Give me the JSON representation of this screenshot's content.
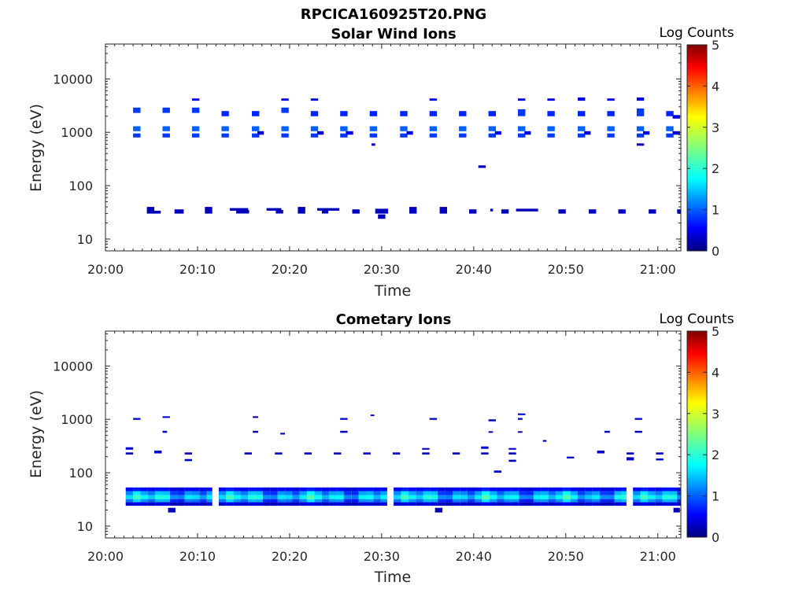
{
  "figure": {
    "file_title": "RPCICA160925T20.PNG"
  },
  "colorbar": {
    "label": "Log Counts",
    "range": [
      0,
      5
    ],
    "ticks": [
      "0",
      "1",
      "2",
      "3",
      "4",
      "5"
    ],
    "colormap": "jet"
  },
  "chart_data": [
    {
      "type": "heatmap",
      "title": "Solar Wind Ions",
      "xlabel": "Time",
      "ylabel": "Energy (eV)",
      "yscale": "log",
      "x_ticks": [
        "20:00",
        "20:10",
        "20:20",
        "20:30",
        "20:40",
        "20:50",
        "21:00"
      ],
      "y_ticks": [
        "10",
        "100",
        "1000",
        "10000"
      ],
      "xlim_minutes_after_20_00": [
        0,
        62.5
      ],
      "ylim_eV": [
        6,
        45000
      ],
      "cells": [
        [
          3.0,
          0.8,
          2300,
          2900,
          0.9
        ],
        [
          3.0,
          0.8,
          1050,
          1300,
          1.1
        ],
        [
          3.0,
          0.8,
          800,
          950,
          0.9
        ],
        [
          6.2,
          0.8,
          2300,
          2900,
          0.9
        ],
        [
          6.2,
          0.8,
          1050,
          1300,
          1.1
        ],
        [
          6.2,
          0.8,
          800,
          950,
          0.9
        ],
        [
          9.4,
          0.8,
          2300,
          2900,
          0.9
        ],
        [
          9.4,
          0.8,
          1050,
          1300,
          1.1
        ],
        [
          9.4,
          0.8,
          800,
          950,
          0.9
        ],
        [
          9.4,
          0.8,
          3900,
          4300,
          0.5
        ],
        [
          12.6,
          0.8,
          2000,
          2500,
          0.8
        ],
        [
          12.6,
          0.8,
          1050,
          1300,
          1.1
        ],
        [
          12.6,
          0.8,
          800,
          950,
          0.9
        ],
        [
          15.9,
          0.8,
          2000,
          2500,
          0.8
        ],
        [
          15.9,
          0.8,
          1050,
          1300,
          1.1
        ],
        [
          15.9,
          0.8,
          800,
          950,
          0.9
        ],
        [
          16.5,
          0.7,
          900,
          1050,
          0.4
        ],
        [
          19.1,
          0.8,
          2300,
          2900,
          0.9
        ],
        [
          19.1,
          0.8,
          1050,
          1300,
          1.1
        ],
        [
          19.1,
          0.8,
          800,
          950,
          0.9
        ],
        [
          19.1,
          0.8,
          3900,
          4300,
          0.5
        ],
        [
          22.3,
          0.8,
          2000,
          2500,
          0.8
        ],
        [
          22.3,
          0.8,
          1050,
          1300,
          1.1
        ],
        [
          22.3,
          0.8,
          800,
          950,
          0.9
        ],
        [
          22.3,
          0.8,
          3900,
          4300,
          0.5
        ],
        [
          23.0,
          0.7,
          900,
          1050,
          0.4
        ],
        [
          25.5,
          0.8,
          2000,
          2500,
          0.8
        ],
        [
          25.5,
          0.8,
          1050,
          1300,
          1.1
        ],
        [
          25.5,
          0.8,
          800,
          950,
          0.9
        ],
        [
          26.1,
          0.8,
          900,
          1050,
          0.5
        ],
        [
          28.7,
          0.8,
          2000,
          2500,
          0.8
        ],
        [
          28.7,
          0.8,
          1050,
          1300,
          1.1
        ],
        [
          28.7,
          0.8,
          800,
          950,
          0.9
        ],
        [
          28.9,
          0.4,
          560,
          620,
          0.3
        ],
        [
          32.0,
          0.8,
          2000,
          2500,
          0.8
        ],
        [
          32.0,
          0.8,
          1050,
          1300,
          1.1
        ],
        [
          32.0,
          0.8,
          800,
          950,
          0.9
        ],
        [
          32.7,
          0.7,
          900,
          1050,
          0.5
        ],
        [
          35.2,
          0.8,
          2000,
          2500,
          0.8
        ],
        [
          35.2,
          0.8,
          1050,
          1300,
          1.1
        ],
        [
          35.2,
          0.8,
          800,
          950,
          0.9
        ],
        [
          35.2,
          0.8,
          3900,
          4300,
          0.5
        ],
        [
          38.4,
          0.8,
          2000,
          2500,
          0.8
        ],
        [
          38.4,
          0.8,
          1050,
          1300,
          1.1
        ],
        [
          38.4,
          0.8,
          800,
          950,
          0.9
        ],
        [
          41.6,
          0.8,
          2000,
          2500,
          0.8
        ],
        [
          41.6,
          0.8,
          1050,
          1300,
          1.1
        ],
        [
          41.6,
          0.8,
          800,
          950,
          0.9
        ],
        [
          42.3,
          0.7,
          900,
          1050,
          0.5
        ],
        [
          40.5,
          0.8,
          215,
          240,
          0.3
        ],
        [
          44.8,
          0.8,
          2000,
          2700,
          0.9
        ],
        [
          44.8,
          0.8,
          1050,
          1300,
          1.1
        ],
        [
          44.8,
          0.8,
          800,
          950,
          0.9
        ],
        [
          44.8,
          0.8,
          3900,
          4300,
          0.5
        ],
        [
          45.5,
          0.7,
          900,
          1050,
          0.5
        ],
        [
          48.0,
          0.8,
          2000,
          2500,
          0.8
        ],
        [
          48.0,
          0.8,
          1050,
          1300,
          1.1
        ],
        [
          48.0,
          0.8,
          800,
          950,
          0.9
        ],
        [
          48.0,
          0.8,
          3900,
          4300,
          0.5
        ],
        [
          51.3,
          0.8,
          2000,
          2500,
          0.8
        ],
        [
          51.3,
          0.8,
          1050,
          1300,
          1.1
        ],
        [
          51.3,
          0.8,
          800,
          950,
          0.9
        ],
        [
          51.3,
          0.8,
          3900,
          4500,
          0.5
        ],
        [
          52.0,
          0.7,
          900,
          1050,
          0.4
        ],
        [
          54.5,
          0.8,
          2000,
          2500,
          0.8
        ],
        [
          54.5,
          0.8,
          1050,
          1300,
          1.1
        ],
        [
          54.5,
          0.8,
          800,
          950,
          0.9
        ],
        [
          54.5,
          0.8,
          3900,
          4300,
          0.5
        ],
        [
          57.7,
          0.8,
          2000,
          2800,
          0.9
        ],
        [
          57.7,
          0.8,
          1050,
          1300,
          1.1
        ],
        [
          57.7,
          0.8,
          800,
          950,
          0.9
        ],
        [
          57.7,
          0.8,
          3900,
          4500,
          0.5
        ],
        [
          57.7,
          0.8,
          560,
          620,
          0.3
        ],
        [
          58.4,
          0.7,
          900,
          1050,
          0.5
        ],
        [
          60.9,
          0.8,
          2000,
          2500,
          0.8
        ],
        [
          60.9,
          0.8,
          1050,
          1300,
          1.1
        ],
        [
          60.9,
          0.8,
          800,
          950,
          0.9
        ],
        [
          61.6,
          0.8,
          1800,
          2100,
          0.5
        ],
        [
          61.6,
          0.8,
          900,
          1050,
          0.5
        ],
        [
          4.5,
          0.8,
          30,
          40,
          0.3
        ],
        [
          5.2,
          0.8,
          30,
          34,
          0.3
        ],
        [
          7.5,
          1.0,
          30,
          36,
          0.3
        ],
        [
          10.8,
          0.8,
          30,
          40,
          0.3
        ],
        [
          13.5,
          2.0,
          34,
          38,
          0.3
        ],
        [
          14.2,
          1.4,
          30,
          35,
          0.3
        ],
        [
          17.5,
          1.6,
          34,
          38,
          0.3
        ],
        [
          18.5,
          0.8,
          30,
          35,
          0.3
        ],
        [
          20.9,
          0.8,
          30,
          40,
          0.3
        ],
        [
          23.0,
          2.4,
          34,
          38,
          0.3
        ],
        [
          23.5,
          0.7,
          30,
          35,
          0.3
        ],
        [
          26.8,
          0.8,
          30,
          36,
          0.3
        ],
        [
          29.3,
          1.4,
          30,
          37,
          0.3
        ],
        [
          29.6,
          0.8,
          24,
          29,
          0.3
        ],
        [
          33.0,
          0.8,
          30,
          40,
          0.3
        ],
        [
          36.3,
          0.8,
          30,
          40,
          0.3
        ],
        [
          39.5,
          0.8,
          30,
          36,
          0.3
        ],
        [
          41.8,
          0.3,
          33,
          37,
          0.3
        ],
        [
          43.0,
          0.8,
          30,
          36,
          0.3
        ],
        [
          44.6,
          2.4,
          33,
          37,
          0.3
        ],
        [
          49.2,
          0.8,
          30,
          36,
          0.3
        ],
        [
          52.5,
          0.8,
          30,
          36,
          0.3
        ],
        [
          55.7,
          0.8,
          30,
          36,
          0.3
        ],
        [
          59.0,
          0.8,
          30,
          36,
          0.3
        ],
        [
          62.1,
          0.6,
          30,
          36,
          0.3
        ]
      ]
    },
    {
      "type": "heatmap",
      "title": "Cometary Ions",
      "xlabel": "Time",
      "ylabel": "Energy (eV)",
      "yscale": "log",
      "x_ticks": [
        "20:00",
        "20:10",
        "20:20",
        "20:30",
        "20:40",
        "20:50",
        "21:00"
      ],
      "y_ticks": [
        "10",
        "100",
        "1000",
        "10000"
      ],
      "xlim_minutes_after_20_00": [
        0,
        62.5
      ],
      "ylim_eV": [
        6,
        45000
      ],
      "band_segments_minutes": [
        [
          2.2,
          11.6
        ],
        [
          12.3,
          30.6
        ],
        [
          31.3,
          56.6
        ],
        [
          57.3,
          62.5
        ]
      ],
      "band_rows": [
        {
          "lo": 45,
          "hi": 53,
          "level": 0.6
        },
        {
          "lo": 38,
          "hi": 45,
          "level": 1.3
        },
        {
          "lo": 32,
          "hi": 38,
          "level": 1.7
        },
        {
          "lo": 28,
          "hi": 32,
          "level": 1.2
        },
        {
          "lo": 24,
          "hi": 28,
          "level": 0.4
        }
      ],
      "cells": [
        [
          6.8,
          0.8,
          18,
          22,
          0.3
        ],
        [
          35.8,
          0.8,
          18,
          22,
          0.3
        ],
        [
          61.7,
          0.7,
          18,
          22,
          0.3
        ],
        [
          3.0,
          0.8,
          980,
          1060,
          0.4
        ],
        [
          6.2,
          0.8,
          1060,
          1140,
          0.4
        ],
        [
          6.2,
          0.5,
          560,
          610,
          0.3
        ],
        [
          2.2,
          0.8,
          270,
          300,
          0.4
        ],
        [
          2.2,
          0.8,
          220,
          240,
          0.3
        ],
        [
          5.3,
          0.8,
          230,
          260,
          0.4
        ],
        [
          8.6,
          0.8,
          220,
          240,
          0.3
        ],
        [
          8.6,
          0.8,
          165,
          180,
          0.3
        ],
        [
          15.1,
          0.8,
          220,
          240,
          0.3
        ],
        [
          16.0,
          0.6,
          1060,
          1140,
          0.3
        ],
        [
          16.0,
          0.6,
          560,
          610,
          0.3
        ],
        [
          18.4,
          0.8,
          220,
          240,
          0.3
        ],
        [
          19.0,
          0.5,
          520,
          560,
          0.3
        ],
        [
          21.6,
          0.8,
          220,
          240,
          0.3
        ],
        [
          24.8,
          0.8,
          220,
          240,
          0.3
        ],
        [
          25.5,
          0.8,
          980,
          1060,
          0.4
        ],
        [
          25.5,
          0.8,
          560,
          610,
          0.3
        ],
        [
          28.0,
          0.8,
          220,
          240,
          0.3
        ],
        [
          28.8,
          0.4,
          1150,
          1230,
          0.3
        ],
        [
          31.2,
          0.8,
          220,
          240,
          0.3
        ],
        [
          34.4,
          0.8,
          220,
          240,
          0.3
        ],
        [
          34.4,
          0.8,
          270,
          290,
          0.3
        ],
        [
          35.2,
          0.8,
          980,
          1060,
          0.3
        ],
        [
          37.7,
          0.8,
          220,
          240,
          0.3
        ],
        [
          40.8,
          0.8,
          280,
          310,
          0.4
        ],
        [
          40.8,
          0.8,
          220,
          240,
          0.3
        ],
        [
          41.6,
          0.8,
          920,
          1000,
          0.3
        ],
        [
          41.6,
          0.5,
          560,
          600,
          0.3
        ],
        [
          42.2,
          0.8,
          100,
          110,
          0.4
        ],
        [
          43.8,
          0.8,
          220,
          240,
          0.3
        ],
        [
          43.8,
          0.8,
          270,
          290,
          0.3
        ],
        [
          43.8,
          0.8,
          160,
          175,
          0.3
        ],
        [
          44.8,
          0.8,
          1200,
          1290,
          0.4
        ],
        [
          44.8,
          0.5,
          980,
          1060,
          0.3
        ],
        [
          44.8,
          0.5,
          560,
          600,
          0.3
        ],
        [
          47.5,
          0.4,
          380,
          410,
          0.3
        ],
        [
          50.1,
          0.8,
          185,
          200,
          0.3
        ],
        [
          53.4,
          0.8,
          230,
          260,
          0.4
        ],
        [
          54.2,
          0.6,
          560,
          610,
          0.3
        ],
        [
          56.6,
          0.8,
          220,
          240,
          0.3
        ],
        [
          56.6,
          0.8,
          170,
          195,
          0.3
        ],
        [
          57.5,
          0.8,
          980,
          1060,
          0.4
        ],
        [
          57.5,
          0.8,
          560,
          610,
          0.3
        ],
        [
          59.8,
          0.8,
          220,
          240,
          0.3
        ],
        [
          59.8,
          0.8,
          170,
          185,
          0.3
        ]
      ]
    }
  ]
}
